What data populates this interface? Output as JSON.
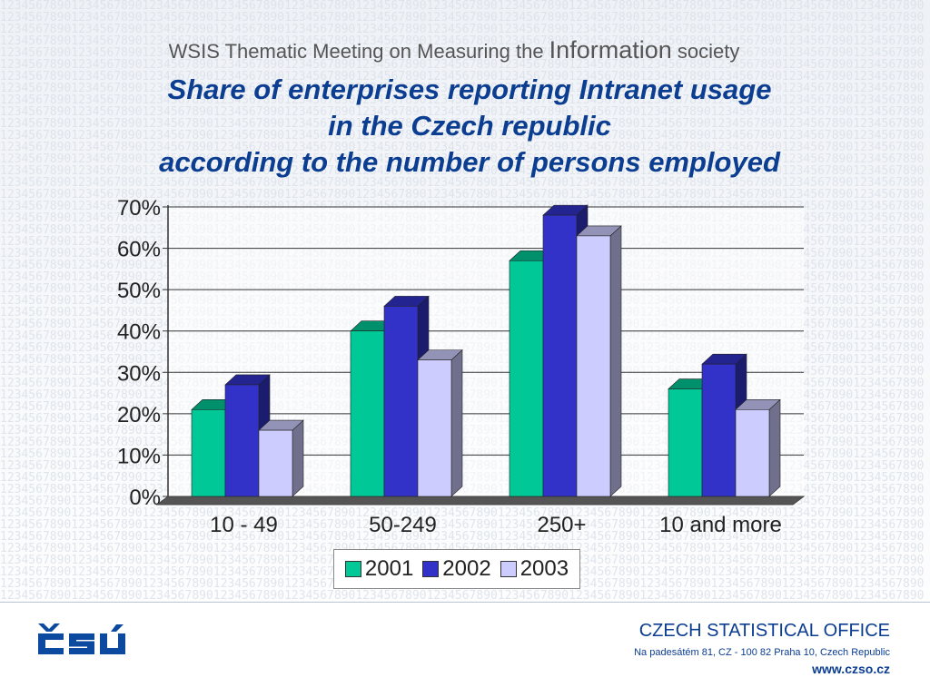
{
  "header": {
    "subtitle_part1": "WSIS Thematic Meeting on Measuring the ",
    "subtitle_part2": "Information",
    "subtitle_part3": " society",
    "title_line1": "Share of enterprises reporting Intranet usage",
    "title_line2": "in the Czech republic",
    "title_line3": "according to the number of persons employed"
  },
  "chart_data": {
    "type": "bar",
    "categories": [
      "10 - 49",
      "50-249",
      "250+",
      "10 and more"
    ],
    "series": [
      {
        "name": "2001",
        "values": [
          21,
          40,
          57,
          26
        ],
        "color": "#00c896"
      },
      {
        "name": "2002",
        "values": [
          27,
          46,
          68,
          32
        ],
        "color": "#3232c8"
      },
      {
        "name": "2003",
        "values": [
          16,
          33,
          63,
          21
        ],
        "color": "#ccccff"
      }
    ],
    "ylim": [
      0,
      70
    ],
    "ytick_labels": [
      "0%",
      "10%",
      "20%",
      "30%",
      "40%",
      "50%",
      "60%",
      "70%"
    ],
    "grid": true,
    "legend_position": "bottom"
  },
  "footer": {
    "logo_text": "ČSÚ",
    "office_name": "CZECH STATISTICAL OFFICE",
    "address": "Na padesátém 81, CZ - 100 82  Praha 10, Czech Republic",
    "website": "www.czso.cz"
  }
}
